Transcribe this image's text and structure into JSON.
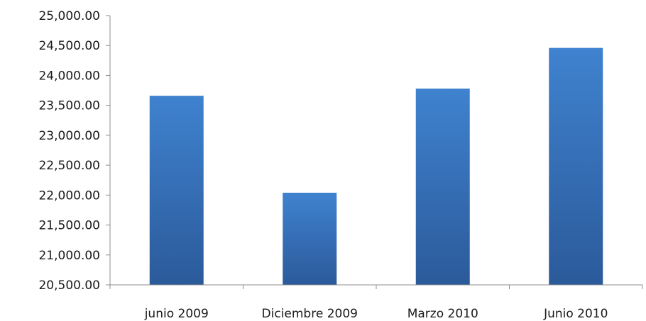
{
  "chart_data": {
    "type": "bar",
    "title": "",
    "xlabel": "",
    "ylabel": "",
    "categories": [
      "junio 2009",
      "Diciembre 2009",
      "Marzo 2010",
      "Junio 2010"
    ],
    "values": [
      23660,
      22040,
      23780,
      24460
    ],
    "ylim": [
      20500,
      25000
    ],
    "ytick_step": 500,
    "ytick_labels": [
      "20,500.00",
      "21,000.00",
      "21,500.00",
      "22,000.00",
      "22,500.00",
      "23,000.00",
      "23,500.00",
      "24,000.00",
      "24,500.00",
      "25,000.00"
    ],
    "grid": false,
    "legend": "none",
    "colors": {
      "bar_top": "#3f82cf",
      "bar_bottom": "#2b5a9a",
      "axis": "#8c8c8c"
    }
  }
}
